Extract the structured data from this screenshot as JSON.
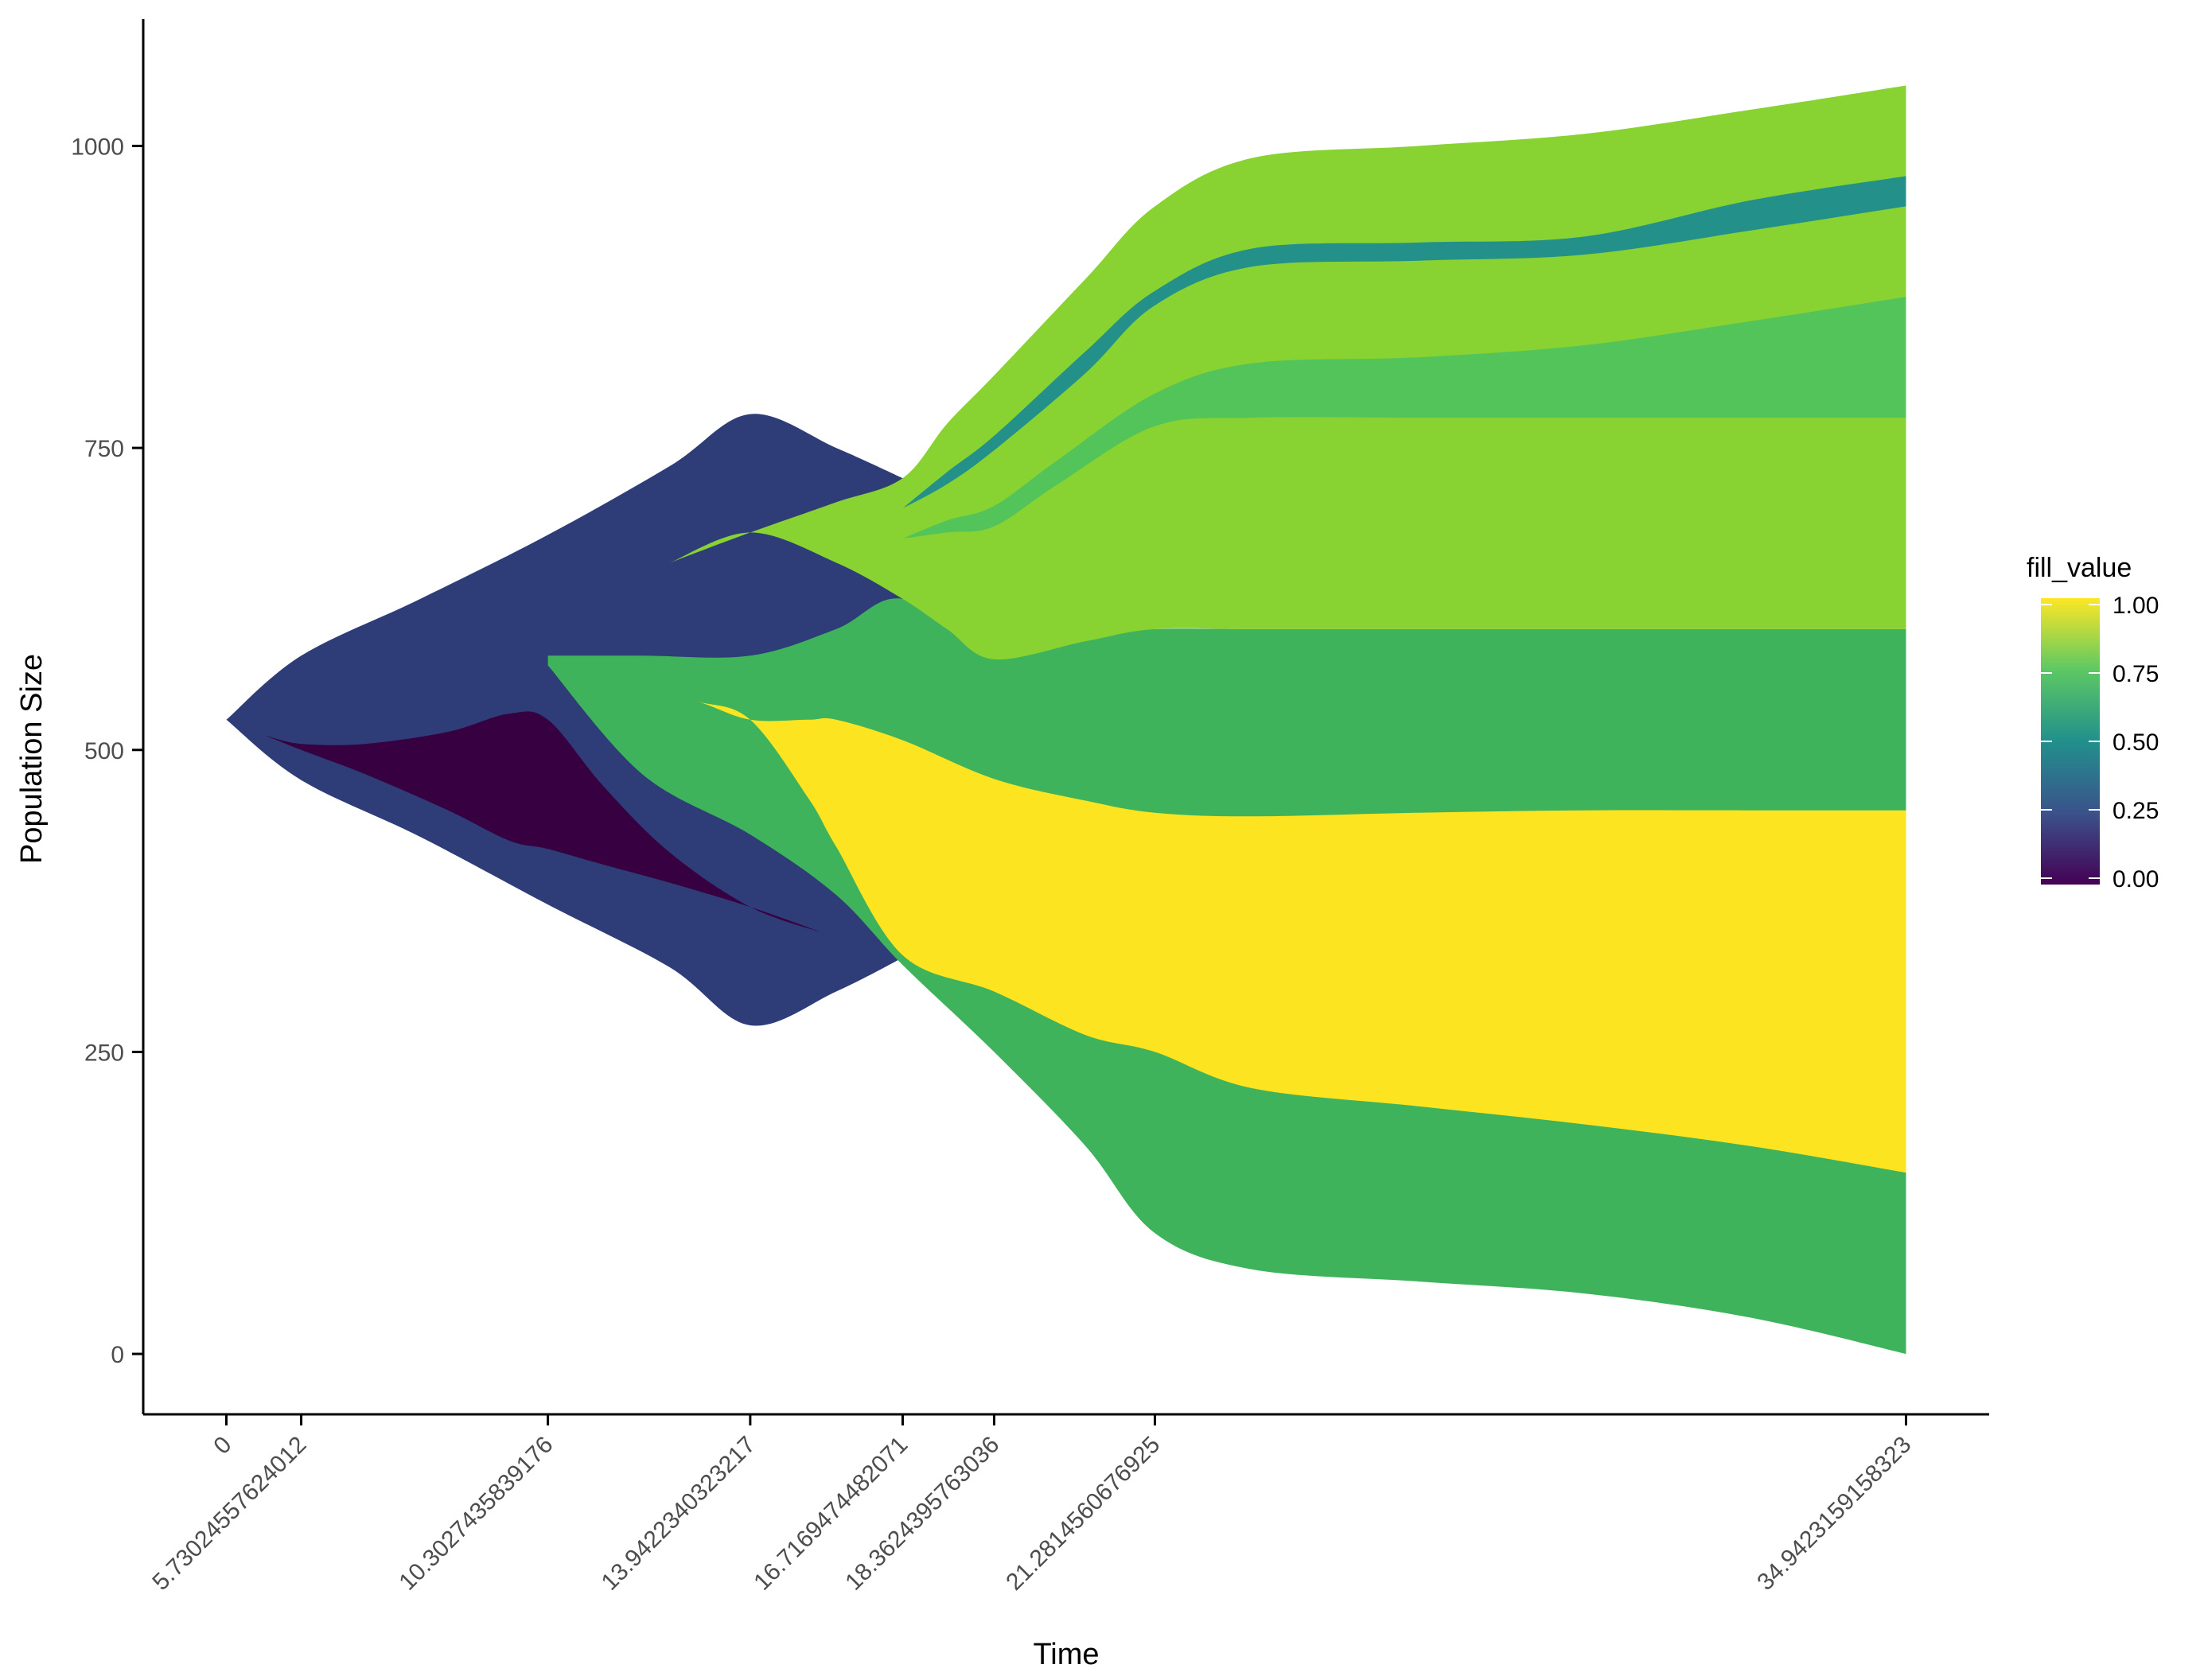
{
  "chart_data": {
    "type": "area",
    "subtype": "fish-plot / clonal evolution streamgraph",
    "xlabel": "Time",
    "ylabel": "Population Size",
    "x_ticks": [
      "0",
      "5.73024557624012",
      "10.3027435839176",
      "13.9422340323217",
      "16.7169474482071",
      "18.3624395763036",
      "21.2814560676925",
      "34.9423159158323"
    ],
    "x_tick_values": [
      0,
      1.35,
      5.8,
      9.45,
      12.2,
      13.85,
      16.75,
      30.3
    ],
    "xlim": [
      -1.5,
      31.8
    ],
    "y_ticks": [
      "0",
      "250",
      "500",
      "750",
      "1000"
    ],
    "y_tick_values": [
      0,
      250,
      500,
      750,
      1000
    ],
    "ylim": [
      -50,
      1105
    ],
    "grid": false,
    "legend": {
      "title": "fill_value",
      "placement": "right",
      "labels": [
        "1.00",
        "0.75",
        "0.50",
        "0.25",
        "0.00"
      ],
      "label_values": [
        1.0,
        0.75,
        0.5,
        0.25,
        0.0
      ],
      "colormap": [
        "#440154",
        "#3b528b",
        "#21908c",
        "#5dc863",
        "#fde725"
      ]
    },
    "bands": [
      {
        "fill_value": 0.25,
        "color": "#2e3d77",
        "x": [
          0,
          1.35,
          3.5,
          5.8,
          8.0,
          9.45,
          11.0,
          12.2,
          12.2,
          11.0,
          9.45,
          8.0,
          5.8,
          3.5,
          1.35,
          0
        ],
        "y_upper": [
          525,
          578,
          625,
          678,
          735,
          778,
          750,
          725,
          328,
          300,
          272,
          320,
          372,
          428,
          475,
          525
        ],
        "y_lower": [
          525,
          475,
          428,
          372,
          320,
          272,
          300,
          328,
          725,
          750,
          778,
          735,
          678,
          625,
          578,
          525
        ]
      },
      {
        "fill_value": 0.0,
        "color": "#370141",
        "x": [
          0.7,
          1.35,
          2.5,
          4.0,
          5.1,
          5.8,
          6.8,
          8.0,
          9.45,
          10.8
        ],
        "y_upper": [
          512,
          505,
          505,
          515,
          530,
          525,
          470,
          415,
          370,
          348
        ],
        "y_lower": [
          512,
          500,
          480,
          450,
          425,
          418,
          405,
          390,
          370,
          348
        ]
      },
      {
        "fill_value": 0.75,
        "color": "#3eb35b",
        "x": [
          5.8,
          7.5,
          9.45,
          11.0,
          12.2,
          13.85,
          15.5,
          16.75,
          18.5,
          21.5,
          24.5,
          27.5,
          30.3
        ],
        "y_upper": [
          578,
          578,
          578,
          600,
          625,
          578,
          594,
          600,
          600,
          600,
          600,
          600,
          600
        ],
        "y_lower": [
          570,
          480,
          430,
          380,
          322,
          250,
          172,
          100,
          70,
          60,
          50,
          30,
          0
        ]
      },
      {
        "fill_value": 1.0,
        "color": "#fde421",
        "x": [
          7.5,
          8.5,
          9.45,
          10.5,
          11.0,
          12.2,
          13.85,
          15.5,
          16.75,
          18.5,
          21.5,
          24.5,
          27.5,
          30.3
        ],
        "y_upper": [
          550,
          540,
          525,
          525,
          525,
          508,
          476,
          458,
          448,
          445,
          448,
          450,
          450,
          450
        ],
        "y_lower": [
          550,
          540,
          525,
          460,
          420,
          330,
          300,
          264,
          250,
          220,
          205,
          190,
          172,
          150
        ]
      },
      {
        "fill_value": 0.875,
        "color": "#88d232",
        "x": [
          8.0,
          9.45,
          11.0,
          12.2,
          13.0,
          13.85,
          15.5,
          16.75,
          18.5,
          21.5,
          24.5,
          27.5,
          30.3
        ],
        "y_upper": [
          655,
          680,
          705,
          725,
          770,
          810,
          890,
          950,
          990,
          1000,
          1010,
          1030,
          1050
        ],
        "y_lower": [
          655,
          680,
          655,
          625,
          600,
          575,
          590,
          600,
          600,
          600,
          600,
          600,
          600
        ]
      },
      {
        "fill_value": 0.5,
        "color": "#23918a",
        "x": [
          12.2,
          13.0,
          13.85,
          15.5,
          16.75,
          18.5,
          21.5,
          24.5,
          27.5,
          30.3
        ],
        "y_upper": [
          700,
          730,
          760,
          830,
          880,
          915,
          920,
          925,
          955,
          975
        ],
        "y_lower": [
          700,
          720,
          748,
          812,
          868,
          900,
          905,
          910,
          930,
          950
        ]
      },
      {
        "fill_value": 0.72,
        "color": "#53c45a",
        "x": [
          12.2,
          13.0,
          13.85,
          15.0,
          16.75,
          18.5,
          21.5,
          24.5,
          27.5,
          30.3
        ],
        "y_upper": [
          675,
          690,
          702,
          740,
          795,
          820,
          825,
          835,
          855,
          875
        ],
        "y_lower": [
          675,
          680,
          685,
          720,
          768,
          775,
          775,
          775,
          775,
          775
        ]
      }
    ]
  }
}
